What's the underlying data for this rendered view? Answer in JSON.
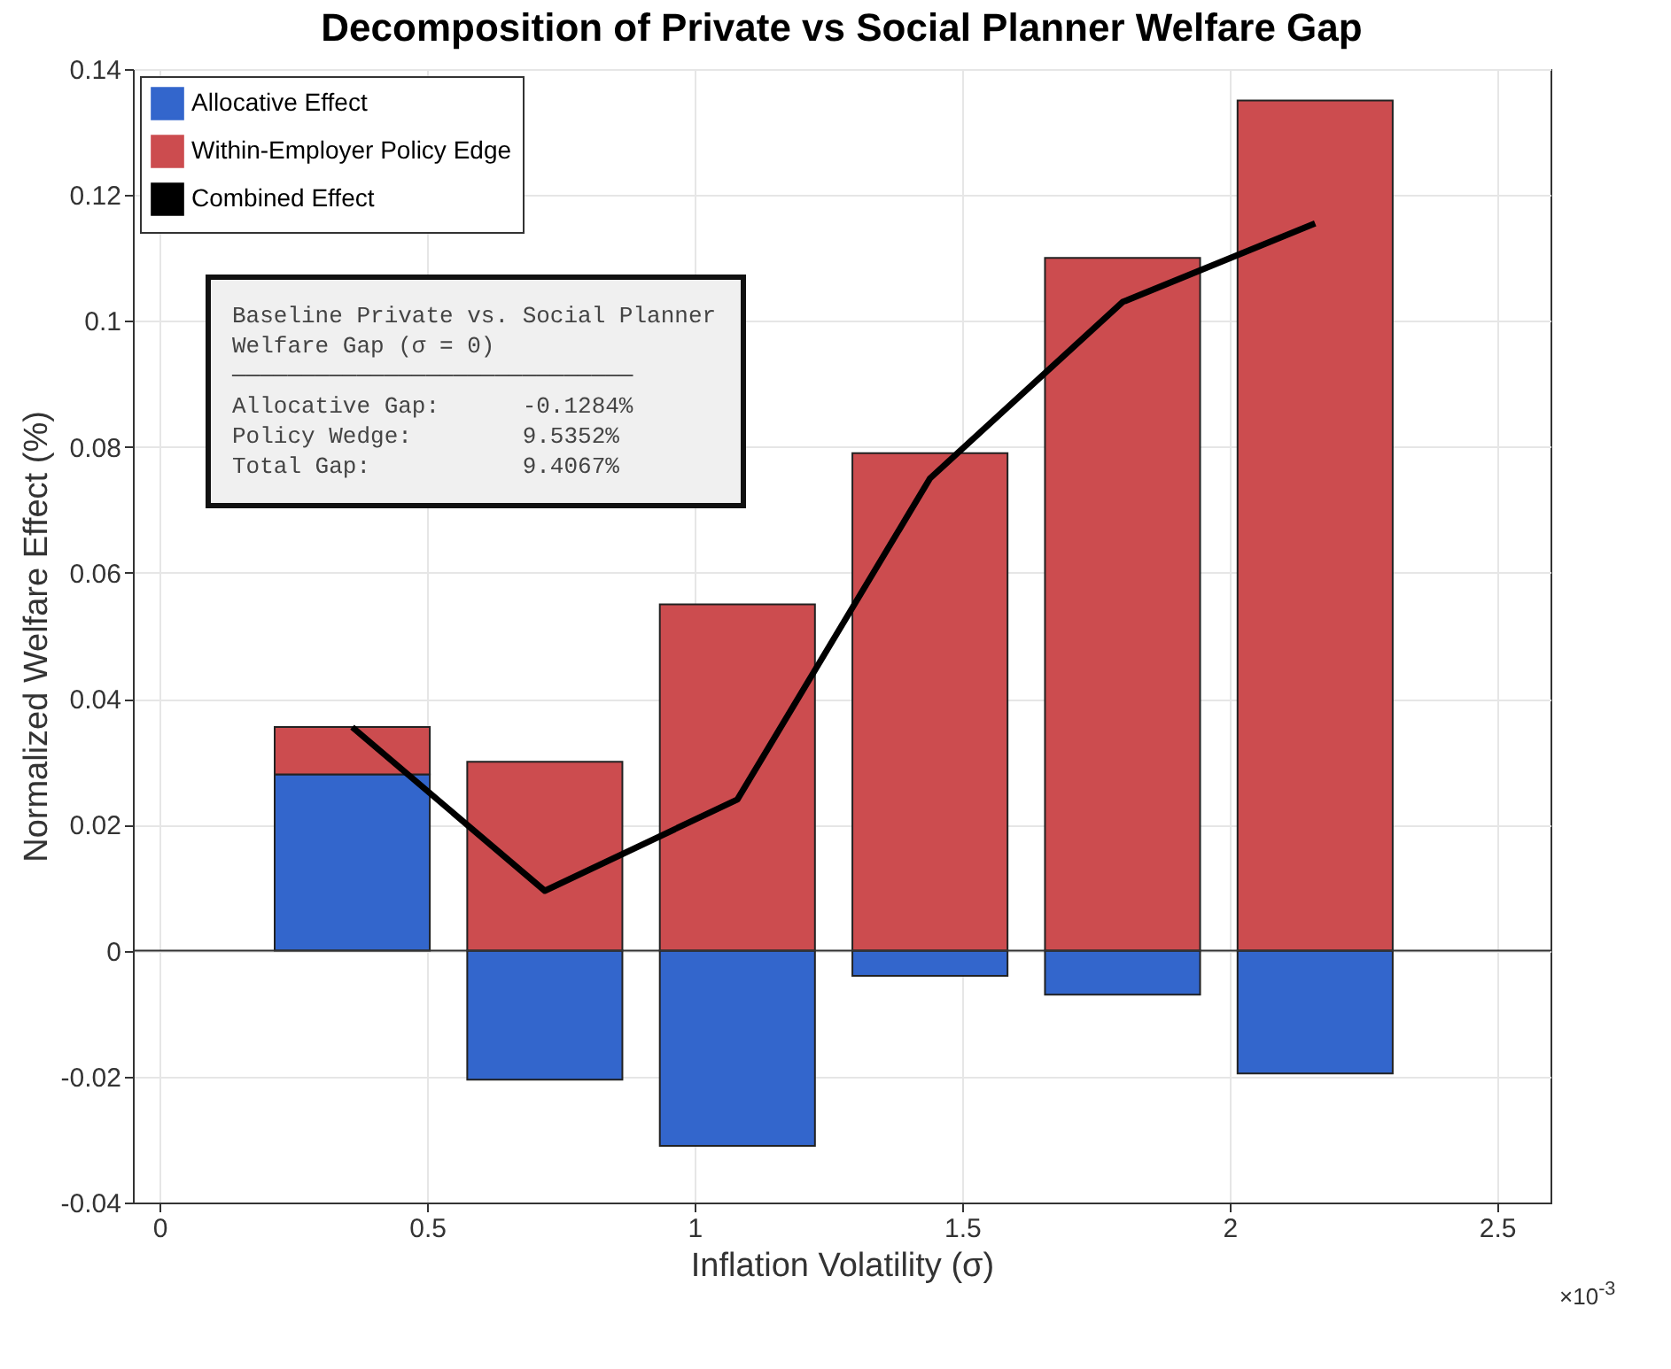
{
  "chart_data": {
    "type": "bar",
    "stacked": true,
    "title": "Decomposition of Private vs Social Planner Welfare Gap",
    "xlabel": "Inflation Volatility (σ)",
    "ylabel": "Normalized Welfare Effect (%)",
    "x": [
      0.36,
      0.72,
      1.08,
      1.44,
      1.8,
      2.16
    ],
    "series": [
      {
        "name": "Allocative Effect",
        "color": "#3366cc",
        "values": [
          0.028,
          -0.0205,
          -0.031,
          -0.004,
          -0.007,
          -0.0195
        ]
      },
      {
        "name": "Within-Employer Policy Edge",
        "color": "#cc4c4f",
        "values": [
          0.0075,
          0.03,
          0.055,
          0.079,
          0.11,
          0.135
        ]
      },
      {
        "name": "Combined Effect",
        "type": "line",
        "color": "#000000",
        "values": [
          0.0355,
          0.0095,
          0.024,
          0.075,
          0.103,
          0.1155
        ]
      }
    ],
    "xlim": [
      -0.05,
      2.6
    ],
    "xticks": [
      0,
      0.5,
      1,
      1.5,
      2,
      2.5
    ],
    "ylim": [
      -0.04,
      0.14
    ],
    "yticks": [
      -0.04,
      -0.02,
      0,
      0.02,
      0.04,
      0.06,
      0.08,
      0.1,
      0.12,
      0.14
    ],
    "ref_lines": [
      {
        "axis": "y",
        "value": 0
      }
    ],
    "grid": true,
    "legend": "top left",
    "annotations": [
      "Baseline Private vs. Social Planner\nWelfare Gap (σ = 0)\n─────────────────────────────\nAllocative Gap:      -0.1284%\nPolicy Wedge:        9.5352%\nTotal Gap:           9.4067%",
      "×10$^{-3}$"
    ]
  }
}
